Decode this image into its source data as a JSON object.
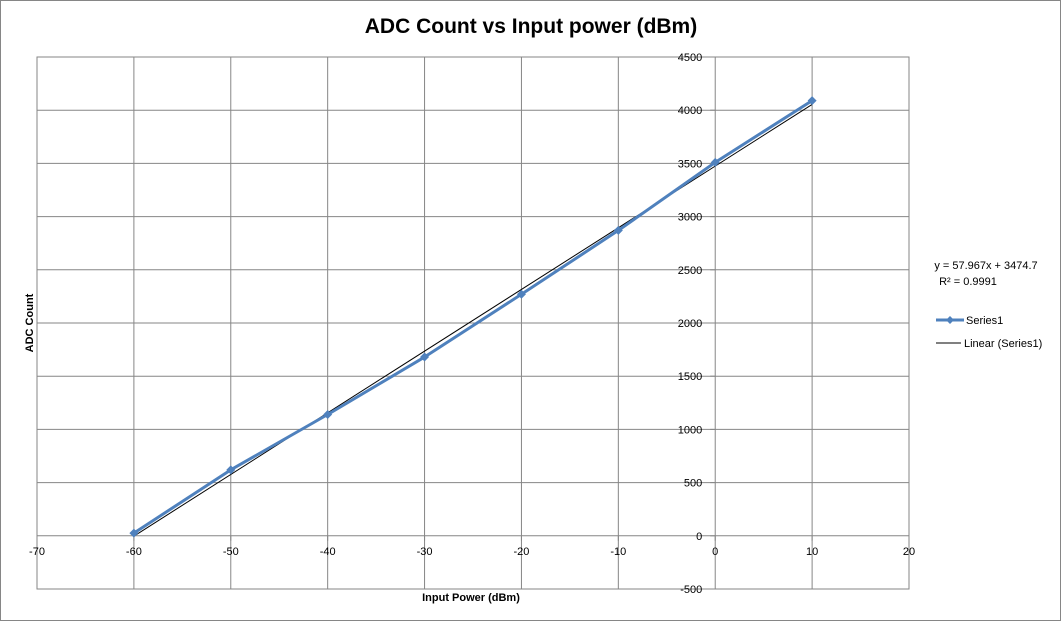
{
  "chart_data": {
    "type": "scatter",
    "title": "ADC Count vs Input power (dBm)",
    "xlabel": "Input  Power (dBm)",
    "ylabel": "ADC Count",
    "xlim": [
      -70,
      20
    ],
    "ylim": [
      -500,
      4500
    ],
    "xticks": [
      -70,
      -60,
      -50,
      -40,
      -30,
      -20,
      -10,
      0,
      10,
      20
    ],
    "yticks": [
      -500,
      0,
      500,
      1000,
      1500,
      2000,
      2500,
      3000,
      3500,
      4000,
      4500
    ],
    "grid": true,
    "legend_position": "right",
    "series": [
      {
        "name": "Series1",
        "color": "#4F81BD",
        "marker": "diamond",
        "x": [
          -60,
          -50,
          -40,
          -30,
          -20,
          -10,
          0,
          10
        ],
        "y": [
          25,
          620,
          1140,
          1680,
          2270,
          2870,
          3510,
          4090
        ]
      }
    ],
    "trendline": {
      "name": "Linear (Series1)",
      "type": "linear",
      "slope": 57.967,
      "intercept": 3474.7,
      "color": "#000000",
      "equation": "y = 57.967x + 3474.7",
      "r_squared_label": "R² = 0.9991"
    }
  }
}
